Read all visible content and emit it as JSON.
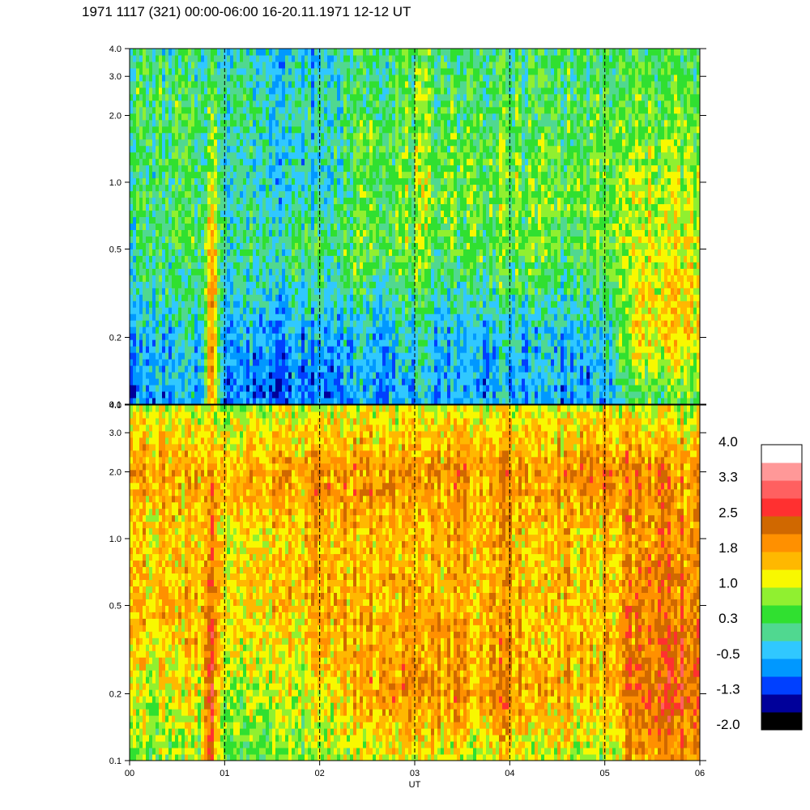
{
  "page": {
    "title": "1971 1117 (321) 00:00-06:00 16-20.11.1971  12-12 UT"
  },
  "chart_data": {
    "type": "heatmap",
    "title": "1971 1117 (321) 00:00-06:00 16-20.11.1971  12-12 UT",
    "xlabel": "UT",
    "ylabel": "",
    "x_ticks": [
      "00",
      "01",
      "02",
      "03",
      "04",
      "05",
      "06"
    ],
    "xlim": [
      0,
      6
    ],
    "y_scale": "log",
    "ylim": [
      0.1,
      4.0
    ],
    "y_ticks": [
      "0.1",
      "0.2",
      "0.5",
      "1.0",
      "2.0",
      "3.0",
      "4.0"
    ],
    "y_tick_values": [
      0.1,
      0.2,
      0.5,
      1.0,
      2.0,
      3.0,
      4.0
    ],
    "grid": "dashed vertical lines at each hour",
    "panels": [
      {
        "name": "upper",
        "x_hours": [
          0.0,
          0.5,
          0.75,
          0.85,
          1.0,
          1.5,
          2.0,
          2.5,
          3.0,
          3.5,
          4.0,
          4.5,
          5.0,
          5.35,
          5.7,
          6.0
        ],
        "y_levels": [
          0.1,
          0.2,
          0.5,
          1.0,
          2.0,
          4.0
        ],
        "values": [
          [
            -0.8,
            -0.6,
            -0.6,
            2.0,
            -0.7,
            -0.9,
            -0.9,
            -0.5,
            -0.5,
            -0.6,
            -0.5,
            -0.6,
            -0.6,
            0.3,
            0.3,
            0.3
          ],
          [
            -0.5,
            -0.3,
            -0.3,
            2.0,
            -0.5,
            -0.5,
            -0.6,
            -0.3,
            -0.3,
            -0.4,
            -0.3,
            -0.4,
            -0.4,
            1.3,
            1.5,
            1.2
          ],
          [
            0.2,
            0.3,
            0.3,
            1.8,
            0.1,
            0.2,
            0.3,
            0.6,
            0.6,
            0.5,
            0.6,
            0.5,
            0.5,
            1.0,
            1.2,
            1.0
          ],
          [
            0.2,
            0.2,
            0.1,
            1.0,
            0.0,
            -0.2,
            -0.3,
            0.6,
            0.7,
            0.6,
            0.6,
            0.6,
            0.5,
            0.9,
            0.9,
            0.8
          ],
          [
            0.4,
            0.3,
            0.3,
            0.5,
            0.2,
            0.0,
            -0.1,
            0.4,
            0.5,
            0.4,
            0.4,
            0.4,
            0.3,
            0.6,
            0.6,
            0.5
          ],
          [
            0.2,
            0.1,
            0.0,
            0.2,
            0.0,
            -0.3,
            -0.3,
            0.2,
            0.3,
            0.2,
            0.2,
            0.2,
            0.1,
            0.3,
            0.3,
            0.2
          ]
        ]
      },
      {
        "name": "lower",
        "x_hours": [
          0.0,
          0.5,
          0.75,
          0.85,
          1.0,
          1.5,
          2.0,
          2.5,
          3.0,
          3.5,
          4.0,
          4.5,
          5.0,
          5.35,
          5.7,
          6.0
        ],
        "y_levels": [
          0.1,
          0.2,
          0.5,
          1.0,
          2.0,
          4.0
        ],
        "values": [
          [
            0.6,
            0.7,
            0.8,
            2.6,
            0.5,
            0.6,
            0.6,
            1.0,
            1.3,
            1.0,
            1.2,
            1.0,
            0.9,
            1.8,
            2.0,
            1.8
          ],
          [
            1.0,
            1.1,
            1.2,
            2.6,
            0.9,
            1.0,
            1.1,
            1.8,
            2.0,
            1.8,
            1.9,
            1.7,
            1.6,
            2.2,
            2.5,
            2.2
          ],
          [
            1.6,
            1.5,
            1.5,
            2.5,
            1.4,
            1.5,
            1.6,
            1.6,
            1.7,
            1.6,
            1.7,
            1.6,
            1.5,
            2.0,
            2.2,
            2.0
          ],
          [
            1.4,
            1.3,
            1.3,
            2.2,
            1.3,
            1.4,
            1.5,
            1.6,
            1.6,
            1.6,
            1.6,
            1.6,
            1.5,
            1.9,
            2.0,
            1.8
          ],
          [
            1.8,
            1.7,
            1.7,
            2.0,
            1.7,
            1.8,
            1.8,
            1.9,
            1.9,
            1.9,
            1.9,
            1.9,
            2.2,
            2.0,
            2.0,
            1.8
          ],
          [
            1.0,
            0.9,
            0.9,
            1.1,
            0.9,
            1.0,
            1.0,
            1.1,
            1.1,
            1.1,
            1.1,
            1.1,
            1.1,
            1.0,
            1.0,
            0.9
          ]
        ]
      }
    ],
    "colorbar": {
      "labels": [
        "4.0",
        "3.3",
        "2.5",
        "1.8",
        "1.0",
        "0.3",
        "-0.5",
        "-1.3",
        "-2.0"
      ],
      "range": [
        -2.0,
        4.0
      ],
      "colors": [
        "#000000",
        "#00009a",
        "#0040ff",
        "#0098ff",
        "#30c8ff",
        "#50d890",
        "#30e030",
        "#90f030",
        "#f8f800",
        "#ffb800",
        "#ff9000",
        "#d06800",
        "#ff3030",
        "#ff6060",
        "#ff9898",
        "#ffffff"
      ]
    }
  }
}
